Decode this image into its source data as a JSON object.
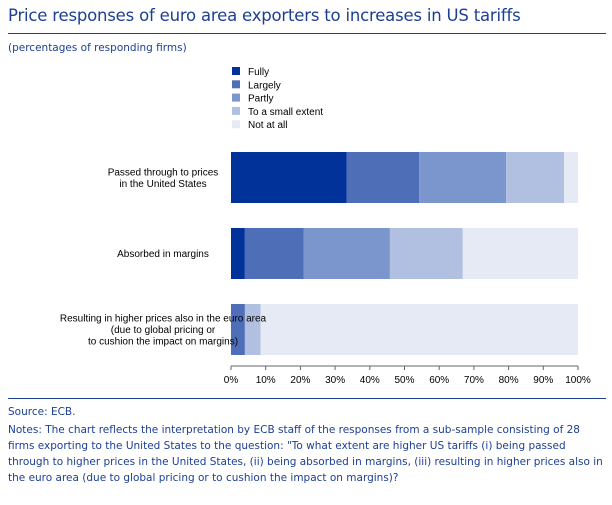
{
  "title": "Price responses of euro area exporters to increases in US tariffs",
  "subtitle": "(percentages of responding firms)",
  "source": "Source: ECB.",
  "notes": "Notes: The chart reflects the interpretation by ECB staff of the responses from a sub-sample consisting of 28 firms exporting to the United States to the question: \"To what extent are higher US tariffs (i) being passed through to higher prices in the United States, (ii) being absorbed in margins, (iii) resulting in higher prices also in the euro area (due to global pricing or to cushion the impact on margins)?",
  "colors": {
    "title": "#1c3f94",
    "fully": "#003299",
    "largely": "#4f6eb8",
    "partly": "#7b96cd",
    "small_extent": "#b1c0e1",
    "not_at_all": "#e6eaf5",
    "axis": "#666666"
  },
  "chart_data": {
    "type": "bar",
    "orientation": "horizontal",
    "stacked": true,
    "categories": [
      [
        "Passed through to prices",
        "in the United States"
      ],
      [
        "Absorbed in margins"
      ],
      [
        "Resulting in higher prices also in the euro area",
        "(due to global pricing or",
        "to cushion the impact on margins)"
      ]
    ],
    "series": [
      {
        "name": "Fully",
        "values": [
          33.3,
          4.0,
          0.0
        ]
      },
      {
        "name": "Largely",
        "values": [
          20.9,
          16.9,
          4.0
        ]
      },
      {
        "name": "Partly",
        "values": [
          25.1,
          24.9,
          0.0
        ]
      },
      {
        "name": "To a small extent",
        "values": [
          16.7,
          21.0,
          4.5
        ]
      },
      {
        "name": "Not at all",
        "values": [
          4.0,
          33.2,
          91.5
        ]
      }
    ],
    "xlim": [
      0,
      100
    ],
    "xticks": [
      "0%",
      "10%",
      "20%",
      "30%",
      "40%",
      "50%",
      "60%",
      "70%",
      "80%",
      "90%",
      "100%"
    ],
    "legend_position": "top-left",
    "grid": false
  }
}
